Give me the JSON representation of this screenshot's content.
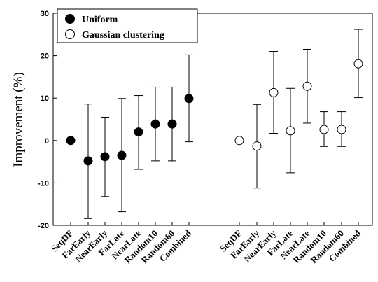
{
  "chart_data": {
    "type": "scatter",
    "title": "",
    "xlabel": "",
    "ylabel": "Improvement (%)",
    "ylim": [
      -20,
      30
    ],
    "yticks": [
      -20,
      -10,
      0,
      10,
      20,
      30
    ],
    "grid": false,
    "legend_position": "top-left",
    "groups": [
      {
        "name": "Uniform",
        "marker": "filled-circle",
        "categories": [
          "SeqDF",
          "FarEarly",
          "NearEarly",
          "FarLate",
          "NearLate",
          "Random10",
          "Random60",
          "Combined"
        ],
        "values": [
          0,
          -4.8,
          -3.8,
          -3.5,
          2.0,
          3.9,
          3.9,
          9.9
        ],
        "error_low": [
          null,
          -18.4,
          -13.2,
          -16.8,
          -6.8,
          -4.8,
          -4.8,
          -0.3
        ],
        "error_high": [
          null,
          8.6,
          5.5,
          9.9,
          10.6,
          12.6,
          12.6,
          20.2
        ]
      },
      {
        "name": "Gaussian clustering",
        "marker": "open-circle",
        "categories": [
          "SeqDF",
          "FarEarly",
          "NearEarly",
          "FarLate",
          "NearLate",
          "Random10",
          "Random60",
          "Combined"
        ],
        "values": [
          0,
          -1.3,
          11.3,
          2.3,
          12.8,
          2.6,
          2.6,
          18.1
        ],
        "error_low": [
          null,
          -11.2,
          1.7,
          -7.6,
          4.1,
          -1.4,
          -1.4,
          10.1
        ],
        "error_high": [
          null,
          8.5,
          21.0,
          12.3,
          21.5,
          6.8,
          6.8,
          26.2
        ]
      }
    ]
  },
  "colors": {
    "axis": "#000000",
    "marker_fill": "#000000",
    "open_marker_fill": "#ffffff"
  }
}
